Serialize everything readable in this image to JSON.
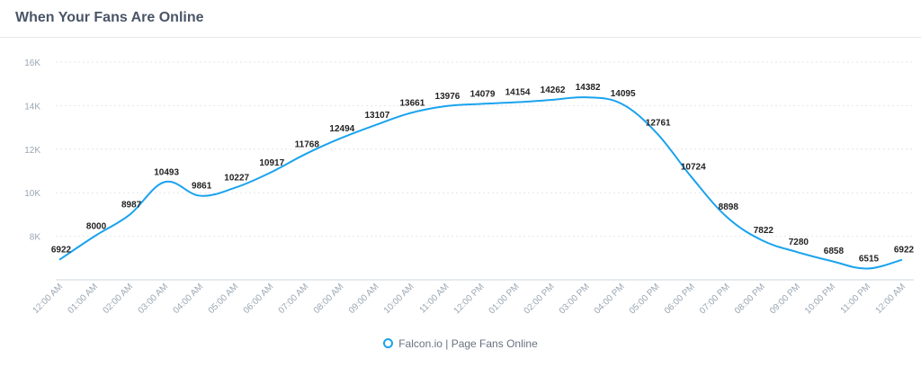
{
  "header": {
    "title": "When Your Fans Are Online"
  },
  "legend": {
    "label": "Falcon.io | Page Fans Online"
  },
  "colors": {
    "line": "#1aa3ee",
    "grid": "#e3e6ea",
    "axis_text": "#9aa6b2",
    "label_text": "#222222"
  },
  "chart_data": {
    "type": "line",
    "title": "When Your Fans Are Online",
    "xlabel": "",
    "ylabel": "",
    "ylim": [
      6000,
      16000
    ],
    "yticks": [
      8000,
      10000,
      12000,
      14000,
      16000
    ],
    "ytick_labels": [
      "8K",
      "10K",
      "12K",
      "14K",
      "16K"
    ],
    "grid": "horizontal dotted",
    "legend_placement": "bottom-center",
    "categories": [
      "12:00 AM",
      "01:00 AM",
      "02:00 AM",
      "03:00 AM",
      "04:00 AM",
      "05:00 AM",
      "06:00 AM",
      "07:00 AM",
      "08:00 AM",
      "09:00 AM",
      "10:00 AM",
      "11:00 AM",
      "12:00 PM",
      "01:00 PM",
      "02:00 PM",
      "03:00 PM",
      "04:00 PM",
      "05:00 PM",
      "06:00 PM",
      "07:00 PM",
      "08:00 PM",
      "09:00 PM",
      "10:00 PM",
      "11:00 PM",
      "12:00 AM"
    ],
    "series": [
      {
        "name": "Falcon.io | Page Fans Online",
        "values": [
          6922,
          8000,
          8987,
          10493,
          9861,
          10227,
          10917,
          11768,
          12494,
          13107,
          13661,
          13976,
          14079,
          14154,
          14262,
          14382,
          14095,
          12761,
          10724,
          8898,
          7822,
          7280,
          6858,
          6515,
          6922
        ]
      }
    ]
  }
}
